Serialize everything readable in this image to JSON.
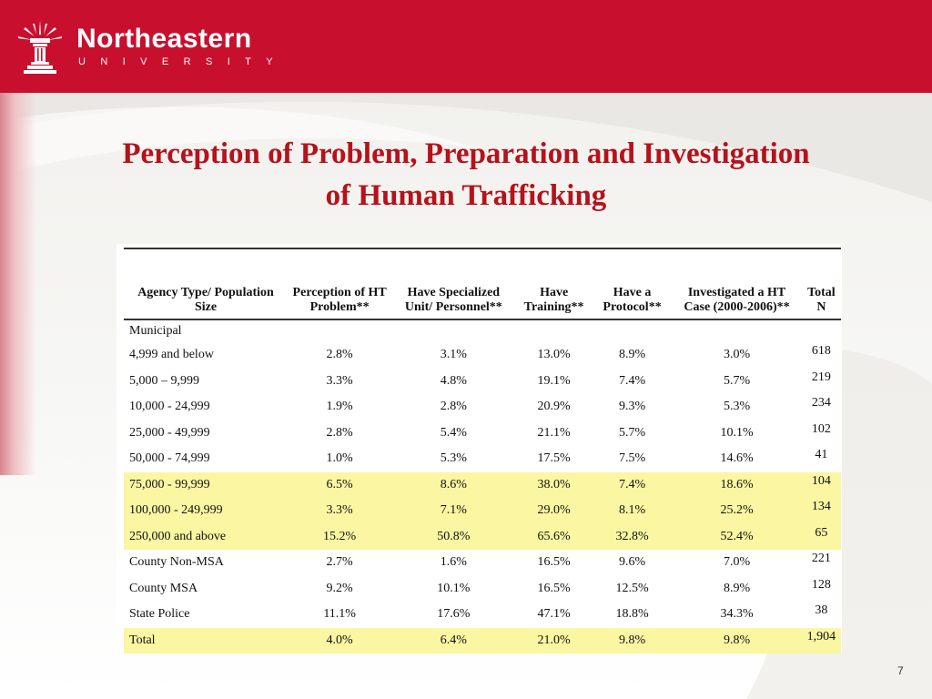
{
  "header": {
    "logo_name": "Northeastern",
    "logo_sub": "UNIVERSITY",
    "brand_color": "#c8102e",
    "logo_icon": "torch-icon"
  },
  "title": {
    "line1": "Perception of Problem, Preparation and Investigation",
    "line2": "of Human Trafficking",
    "color": "#b5121b"
  },
  "table": {
    "headers": [
      "Agency Type/ Population Size",
      "Perception of HT Problem**",
      "Have Specialized Unit/ Personnel**",
      "Have Training**",
      "Have a Protocol**",
      "Investigated a HT Case (2000-2006)**",
      "Total N"
    ],
    "section_label": "Municipal",
    "highlight_color": "#fbf6a1",
    "rows": [
      {
        "label": "4,999 and below",
        "cells": [
          "2.8%",
          "3.1%",
          "13.0%",
          "8.9%",
          "3.0%",
          "618"
        ],
        "highlight": false
      },
      {
        "label": "5,000 – 9,999",
        "cells": [
          "3.3%",
          "4.8%",
          "19.1%",
          "7.4%",
          "5.7%",
          "219"
        ],
        "highlight": false
      },
      {
        "label": "10,000 - 24,999",
        "cells": [
          "1.9%",
          "2.8%",
          "20.9%",
          "9.3%",
          "5.3%",
          "234"
        ],
        "highlight": false
      },
      {
        "label": "25,000 - 49,999",
        "cells": [
          "2.8%",
          "5.4%",
          "21.1%",
          "5.7%",
          "10.1%",
          "102"
        ],
        "highlight": false
      },
      {
        "label": "50,000 - 74,999",
        "cells": [
          "1.0%",
          "5.3%",
          "17.5%",
          "7.5%",
          "14.6%",
          "41"
        ],
        "highlight": false
      },
      {
        "label": "75,000 - 99,999",
        "cells": [
          "6.5%",
          "8.6%",
          "38.0%",
          "7.4%",
          "18.6%",
          "104"
        ],
        "highlight": true
      },
      {
        "label": "100,000 - 249,999",
        "cells": [
          "3.3%",
          "7.1%",
          "29.0%",
          "8.1%",
          "25.2%",
          "134"
        ],
        "highlight": true
      },
      {
        "label": "250,000 and above",
        "cells": [
          "15.2%",
          "50.8%",
          "65.6%",
          "32.8%",
          "52.4%",
          "65"
        ],
        "highlight": true
      },
      {
        "label": "County Non-MSA",
        "cells": [
          "2.7%",
          "1.6%",
          "16.5%",
          "9.6%",
          "7.0%",
          "221"
        ],
        "highlight": false
      },
      {
        "label": "County MSA",
        "cells": [
          "9.2%",
          "10.1%",
          "16.5%",
          "12.5%",
          "8.9%",
          "128"
        ],
        "highlight": false
      },
      {
        "label": "State Police",
        "cells": [
          "11.1%",
          "17.6%",
          "47.1%",
          "18.8%",
          "34.3%",
          "38"
        ],
        "highlight": false
      },
      {
        "label": "Total",
        "cells": [
          "4.0%",
          "6.4%",
          "21.0%",
          "9.8%",
          "9.8%",
          "1,904"
        ],
        "highlight": true
      }
    ]
  },
  "page_number": "7"
}
